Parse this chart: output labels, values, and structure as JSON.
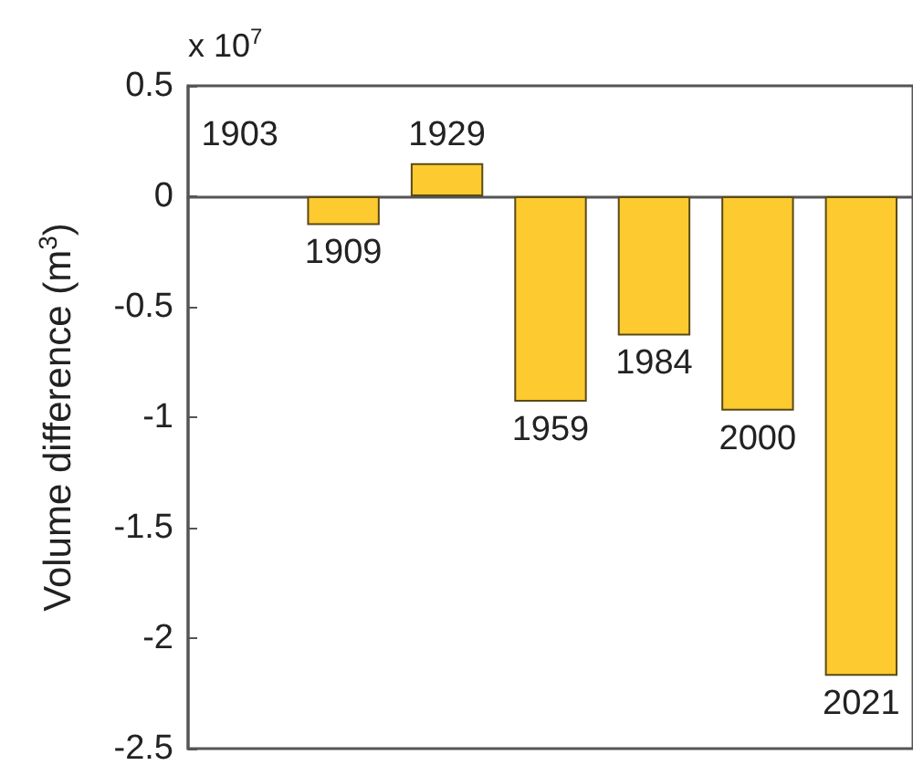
{
  "chart_data": {
    "type": "bar",
    "ylabel": "Volume difference (m$^{3}$)",
    "annotations": [
      "x 10$^{7}$"
    ],
    "categories": [
      "1903",
      "1909",
      "1929",
      "1959",
      "1984",
      "2000",
      "2021"
    ],
    "values": [
      null,
      -0.13,
      0.15,
      -0.93,
      -0.63,
      -0.97,
      -2.17
    ],
    "color": "#fdca30",
    "ylim": [
      -2.5,
      0.5
    ],
    "yticks": [
      0.5,
      0,
      -0.5,
      -1,
      -1.5,
      -2,
      -2.5
    ],
    "tick_labels": "y"
  }
}
